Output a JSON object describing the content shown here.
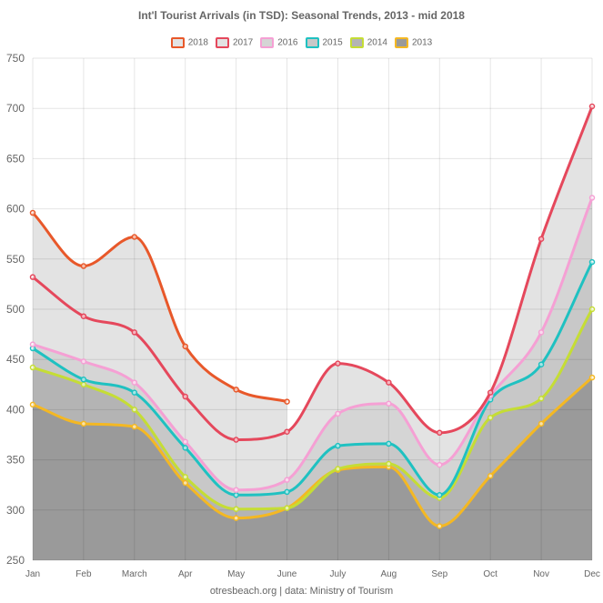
{
  "chart_data": {
    "type": "line",
    "title": "Int'l Tourist Arrivals (in TSD): Seasonal Trends, 2013 - mid 2018",
    "categories": [
      "Jan",
      "Feb",
      "March",
      "Apr",
      "May",
      "June",
      "July",
      "Aug",
      "Sep",
      "Oct",
      "Nov",
      "Dec"
    ],
    "ylim": [
      250,
      750
    ],
    "yticks": [
      250,
      300,
      350,
      400,
      450,
      500,
      550,
      600,
      650,
      700,
      750
    ],
    "grid": true,
    "legend_position": "top",
    "footer": "otresbeach.org | data: Ministry of Tourism",
    "series": [
      {
        "name": "2018",
        "color": "#e8582a",
        "fill": "#e3e3e3",
        "values": [
          596,
          543,
          572,
          463,
          420,
          408,
          null,
          null,
          null,
          null,
          null,
          null
        ]
      },
      {
        "name": "2017",
        "color": "#e5485c",
        "fill": "#e3e3e3",
        "values": [
          532,
          493,
          477,
          413,
          370,
          378,
          446,
          427,
          377,
          417,
          570,
          702
        ]
      },
      {
        "name": "2016",
        "color": "#f5a0d4",
        "fill": "#d5d5d5",
        "values": [
          465,
          448,
          427,
          368,
          320,
          330,
          396,
          406,
          345,
          414,
          477,
          611
        ]
      },
      {
        "name": "2015",
        "color": "#1fc1c1",
        "fill": "#c8c8c8",
        "values": [
          461,
          430,
          417,
          362,
          315,
          318,
          364,
          366,
          315,
          410,
          445,
          547
        ]
      },
      {
        "name": "2014",
        "color": "#c5dd35",
        "fill": "#b4b4b4",
        "values": [
          442,
          425,
          400,
          333,
          301,
          302,
          341,
          346,
          312,
          392,
          411,
          500
        ]
      },
      {
        "name": "2013",
        "color": "#f4b823",
        "fill": "#9a9a9a",
        "values": [
          405,
          386,
          383,
          327,
          292,
          302,
          340,
          343,
          284,
          334,
          386,
          432
        ]
      }
    ]
  }
}
